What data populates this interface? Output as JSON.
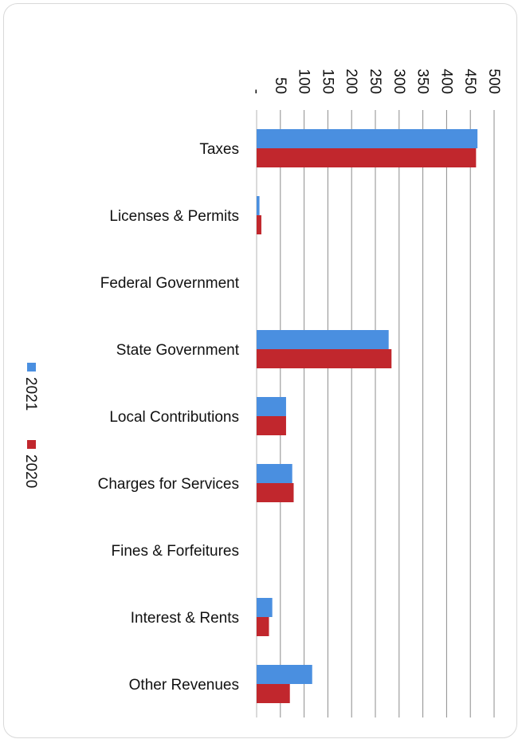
{
  "chart_data": {
    "type": "bar",
    "orientation": "horizontal",
    "categories": [
      "Taxes",
      "Licenses & Permits",
      "Federal Government",
      "State Government",
      "Local Contributions",
      "Charges for Services",
      "Fines & Forfeitures",
      "Interest & Rents",
      "Other Revenues"
    ],
    "series": [
      {
        "name": "2021",
        "color": "#4a8fe0",
        "values": [
          465,
          6,
          0,
          278,
          62,
          75,
          0,
          33,
          117
        ]
      },
      {
        "name": "2020",
        "color": "#c1272d",
        "values": [
          462,
          10,
          0,
          284,
          62,
          78,
          0,
          26,
          70
        ]
      }
    ],
    "xlim": [
      0,
      500
    ],
    "tick_values": [
      0,
      50,
      100,
      150,
      200,
      250,
      300,
      350,
      400,
      450,
      500
    ],
    "tick_labels": [
      "-",
      "50",
      "100",
      "150",
      "200",
      "250",
      "300",
      "350",
      "400",
      "450",
      "500"
    ],
    "grid": true,
    "legend": "left",
    "title": "",
    "xlabel": "",
    "ylabel": ""
  }
}
